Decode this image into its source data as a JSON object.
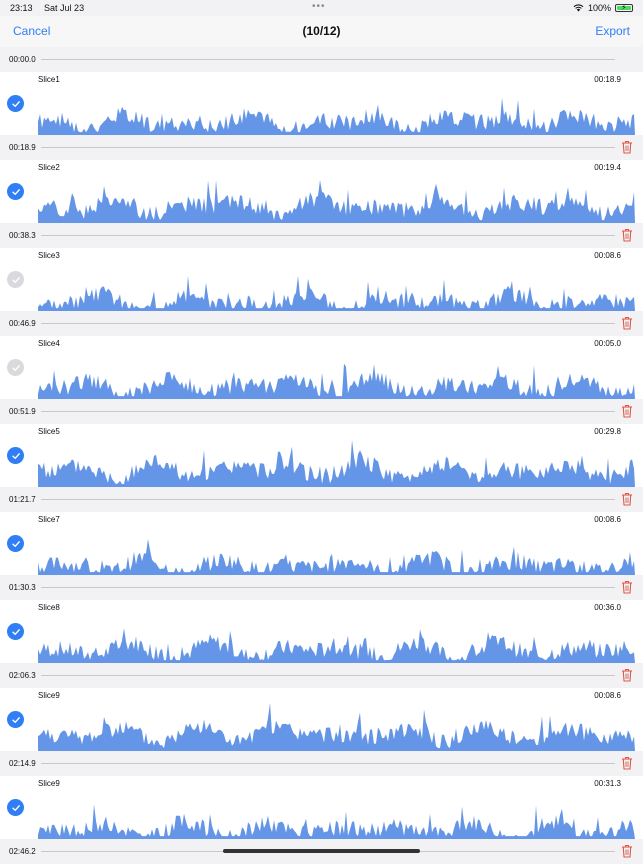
{
  "status_bar": {
    "time": "23:13",
    "date": "Sat Jul 23",
    "battery": "100%"
  },
  "nav": {
    "cancel": "Cancel",
    "title": "(10/12)",
    "export": "Export"
  },
  "colors": {
    "accent": "#2f7ef6",
    "waveform": "#6495e6",
    "trash": "#e0584a",
    "check_off": "#dadade"
  },
  "markers": [
    {
      "time": "00:00.0",
      "deletable": false
    },
    {
      "time": "00:18.9",
      "deletable": true
    },
    {
      "time": "00:38.3",
      "deletable": true
    },
    {
      "time": "00:46.9",
      "deletable": true
    },
    {
      "time": "00:51.9",
      "deletable": true
    },
    {
      "time": "01:21.7",
      "deletable": true
    },
    {
      "time": "01:30.3",
      "deletable": true
    },
    {
      "time": "02:06.3",
      "deletable": true
    },
    {
      "time": "02:14.9",
      "deletable": true
    },
    {
      "time": "02:46.2",
      "deletable": true
    }
  ],
  "slices": [
    {
      "name": "Slice1",
      "duration": "00:18.9",
      "selected": true
    },
    {
      "name": "Slice2",
      "duration": "00:19.4",
      "selected": true
    },
    {
      "name": "Slice3",
      "duration": "00:08.6",
      "selected": false
    },
    {
      "name": "Slice4",
      "duration": "00:05.0",
      "selected": false
    },
    {
      "name": "Slice5",
      "duration": "00:29.8",
      "selected": true
    },
    {
      "name": "Slice7",
      "duration": "00:08.6",
      "selected": true
    },
    {
      "name": "Slice8",
      "duration": "00:36.0",
      "selected": true
    },
    {
      "name": "Slice9",
      "duration": "00:08.6",
      "selected": true
    },
    {
      "name": "Slice9",
      "duration": "00:31.3",
      "selected": true
    }
  ]
}
